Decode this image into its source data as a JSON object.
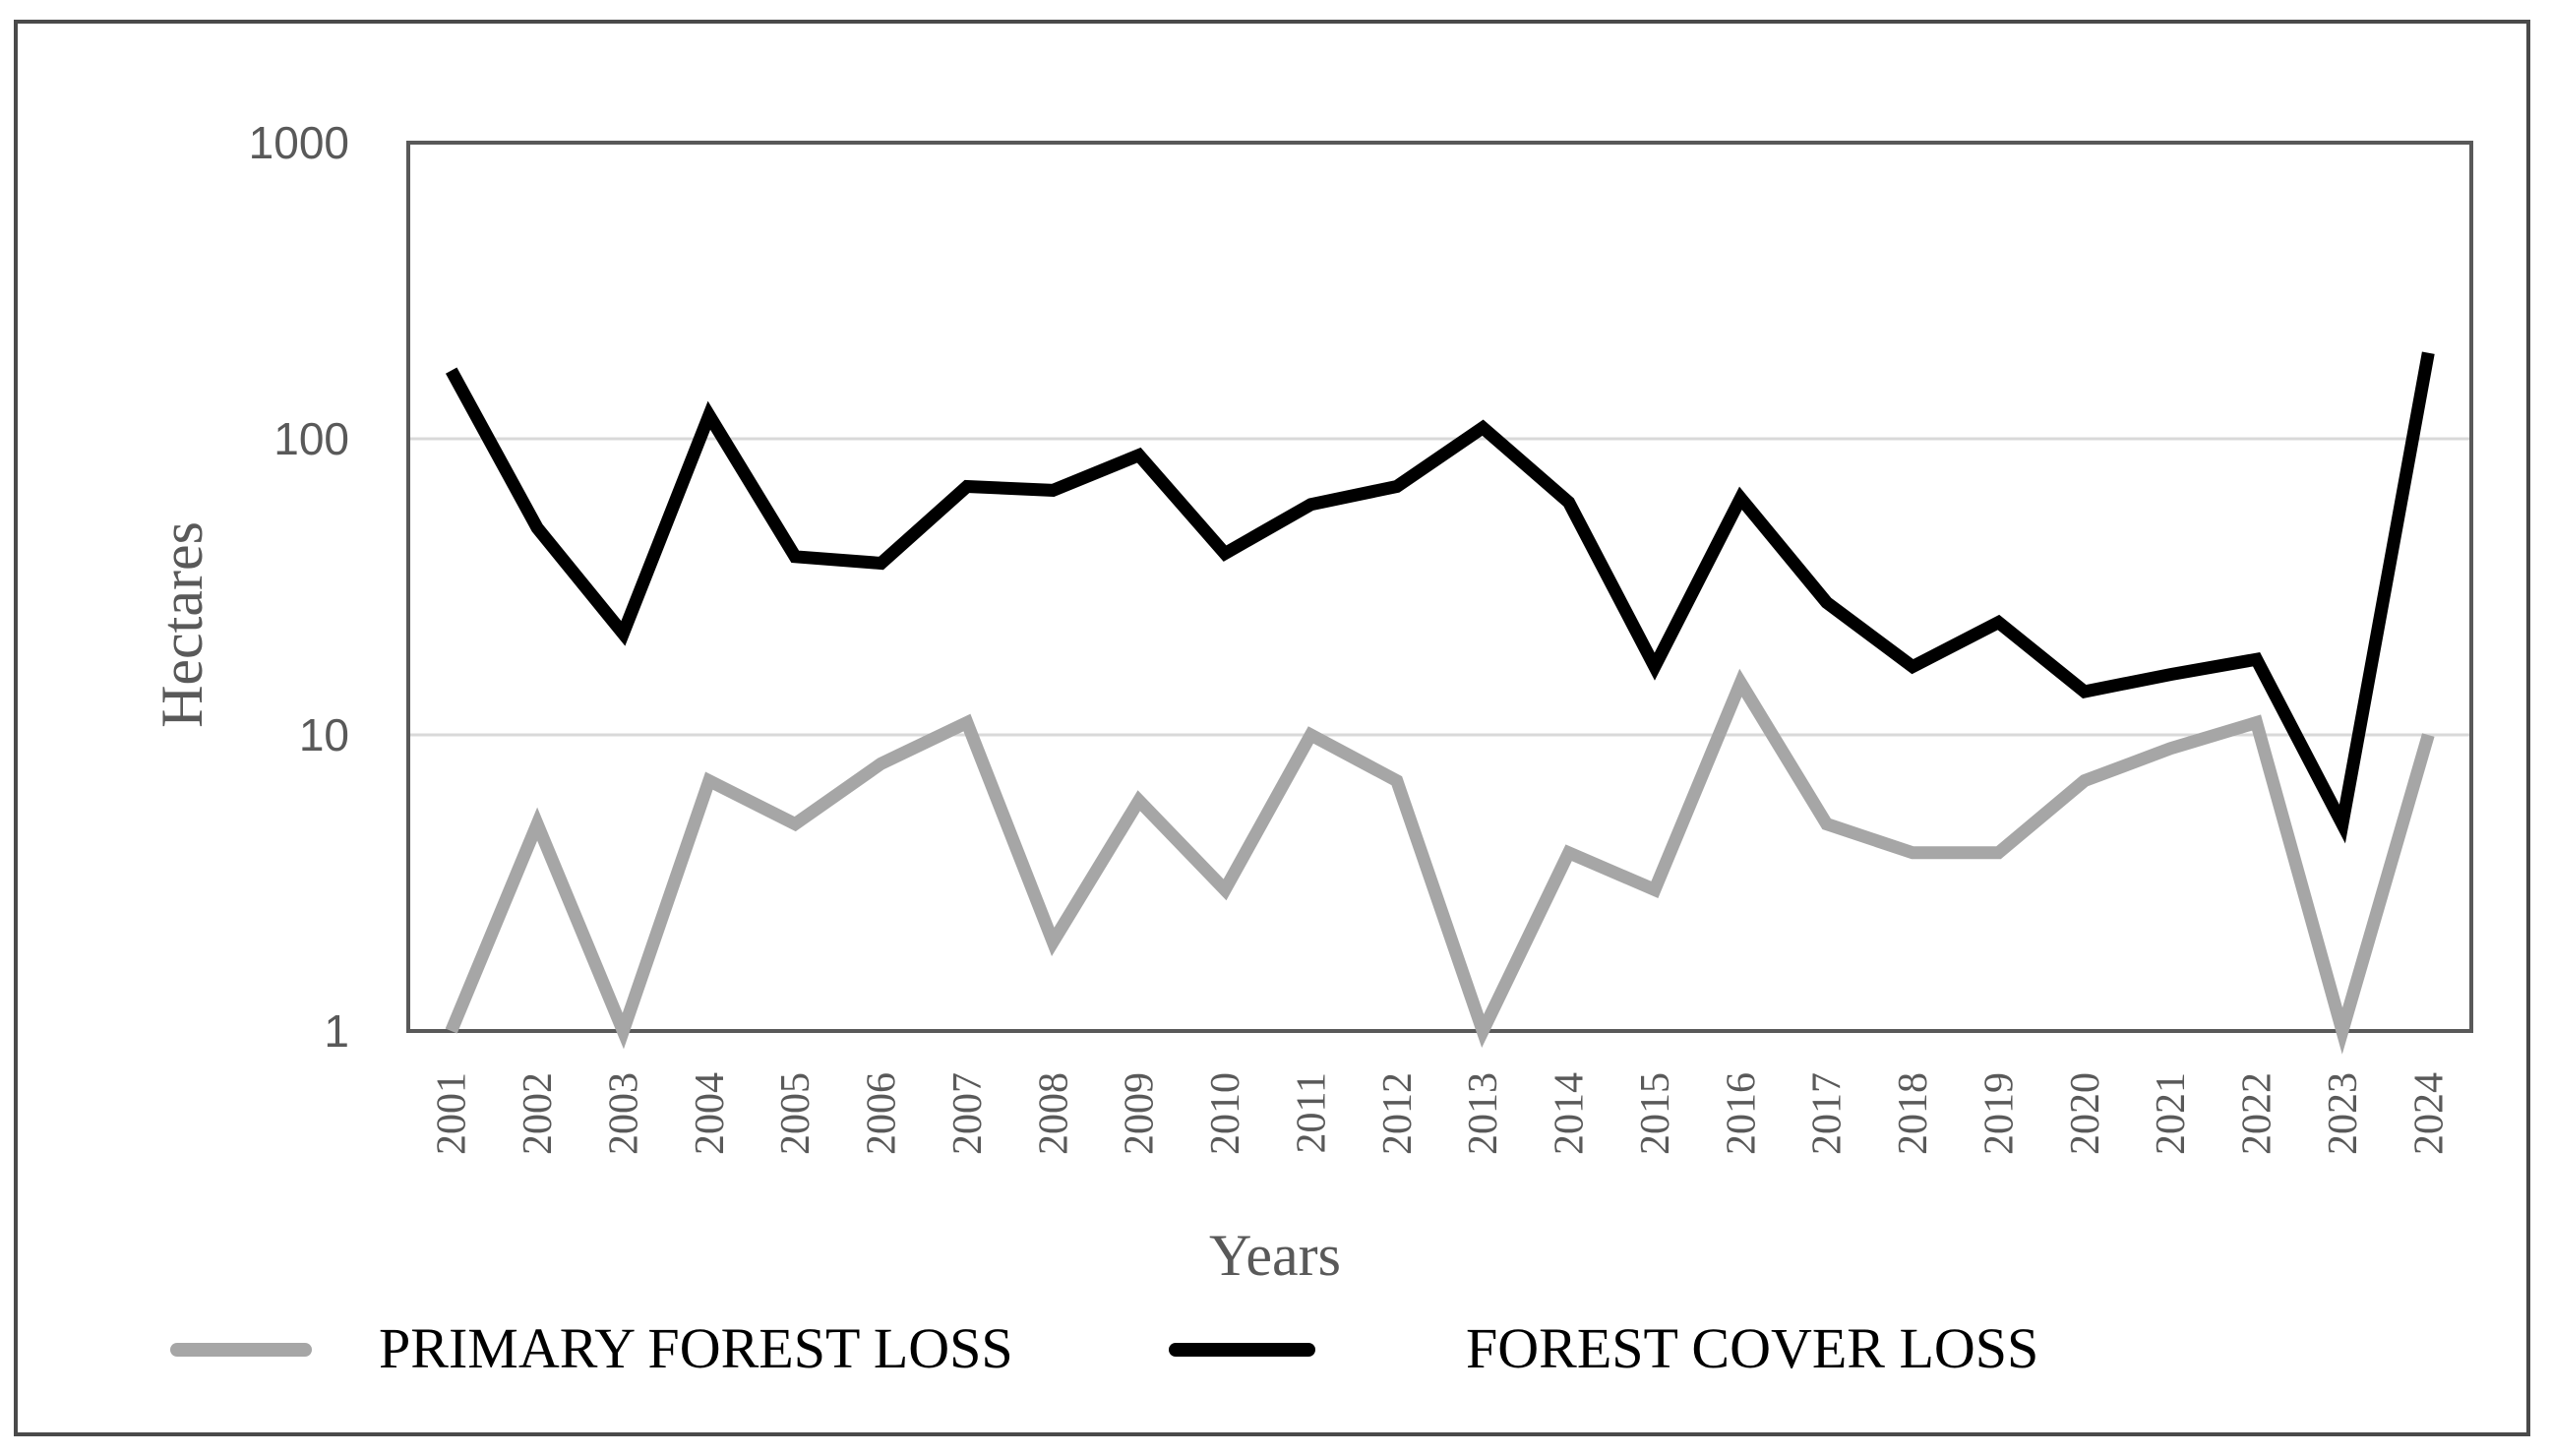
{
  "chart_data": {
    "type": "line",
    "title": "",
    "xlabel": "Years",
    "ylabel": "Hectares",
    "yscale": "log",
    "ylim": [
      1,
      1000
    ],
    "yticks": [
      "1",
      "10",
      "100",
      "1000"
    ],
    "grid": "horizontal",
    "legend_position": "bottom",
    "x": [
      "2001",
      "2002",
      "2003",
      "2004",
      "2005",
      "2006",
      "2007",
      "2008",
      "2009",
      "2010",
      "2011",
      "2012",
      "2013",
      "2014",
      "2015",
      "2016",
      "2017",
      "2018",
      "2019",
      "2020",
      "2021",
      "2022",
      "2023",
      "2024"
    ],
    "series": [
      {
        "name": "PRIMARY FOREST LOSS",
        "color": "#a6a6a6",
        "values": [
          1,
          5,
          1,
          7,
          5,
          8,
          11,
          2,
          6,
          3,
          10,
          7,
          1,
          4,
          3,
          15,
          5,
          4,
          4,
          7,
          9,
          11,
          1,
          10
        ]
      },
      {
        "name": "FOREST COVER LOSS",
        "color": "#000000",
        "values": [
          170,
          50,
          22,
          120,
          40,
          38,
          69,
          67,
          88,
          41,
          60,
          69,
          109,
          61,
          17,
          63,
          28,
          17,
          24,
          14,
          16,
          18,
          5,
          195
        ]
      }
    ]
  }
}
